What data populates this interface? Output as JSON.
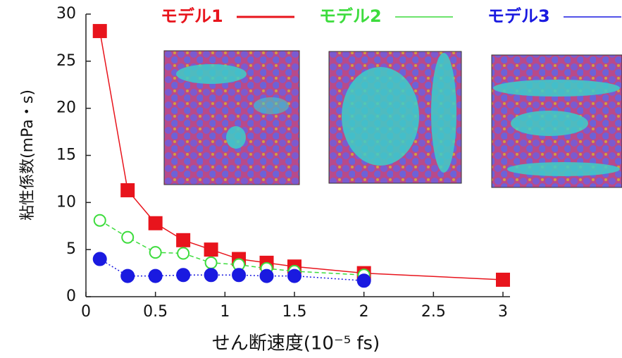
{
  "chart_data": {
    "type": "line",
    "ylabel": "粘性係数(mPa・s)",
    "xlabel": "せん断速度(10⁻⁵ fs)",
    "xlim": [
      0,
      3
    ],
    "xticks": [
      0,
      0.5,
      1,
      1.5,
      2,
      2.5,
      3
    ],
    "ylim": [
      0,
      30
    ],
    "yticks": [
      0,
      5,
      10,
      15,
      20,
      25,
      30
    ],
    "grid": false,
    "series": [
      {
        "name": "モデル1",
        "color": "#e8141c",
        "marker": "square",
        "filled": true,
        "dash": "solid",
        "x": [
          0.1,
          0.3,
          0.5,
          0.7,
          0.9,
          1.1,
          1.3,
          1.5,
          2,
          3
        ],
        "values": [
          28.2,
          11.3,
          7.8,
          6.0,
          5.0,
          4.0,
          3.6,
          3.2,
          2.5,
          1.8
        ]
      },
      {
        "name": "モデル2",
        "color": "#3ddc3d",
        "marker": "circle",
        "filled": false,
        "dash": "dashed",
        "x": [
          0.1,
          0.3,
          0.5,
          0.7,
          0.9,
          1.1,
          1.3,
          1.5,
          2
        ],
        "values": [
          8.1,
          6.3,
          4.7,
          4.6,
          3.6,
          3.4,
          3.0,
          2.7,
          2.3
        ]
      },
      {
        "name": "モデル3",
        "color": "#1a1ae0",
        "marker": "circle",
        "filled": true,
        "dash": "dotted",
        "x": [
          0.1,
          0.3,
          0.5,
          0.7,
          0.9,
          1.1,
          1.3,
          1.5,
          2
        ],
        "values": [
          4.0,
          2.2,
          2.2,
          2.3,
          2.3,
          2.3,
          2.2,
          2.2,
          1.7
        ]
      }
    ]
  }
}
